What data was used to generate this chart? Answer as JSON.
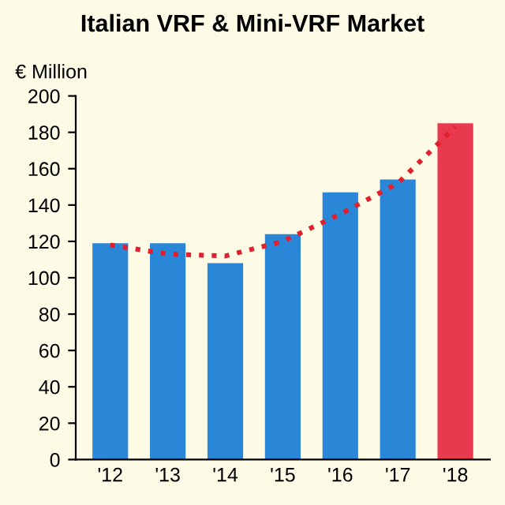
{
  "chart_data": {
    "type": "bar",
    "title": "Italian VRF & Mini-VRF Market",
    "ylabel": "€ Million",
    "categories": [
      "'12",
      "'13",
      "'14",
      "'15",
      "'16",
      "'17",
      "'18"
    ],
    "series": [
      {
        "values": [
          119,
          119,
          108,
          124,
          147,
          154,
          185
        ],
        "colors": [
          "#2a86d6",
          "#2a86d6",
          "#2a86d6",
          "#2a86d6",
          "#2a86d6",
          "#2a86d6",
          "#e8394f"
        ]
      },
      {
        "type": "line",
        "color": "#e0202e",
        "line_style": "dotted",
        "values": [
          118,
          113,
          112,
          120,
          135,
          152,
          183
        ]
      }
    ],
    "ylim": [
      0,
      200
    ],
    "yticks": [
      0,
      20,
      40,
      60,
      80,
      100,
      120,
      140,
      160,
      180,
      200
    ],
    "grid": false,
    "legend": false
  }
}
